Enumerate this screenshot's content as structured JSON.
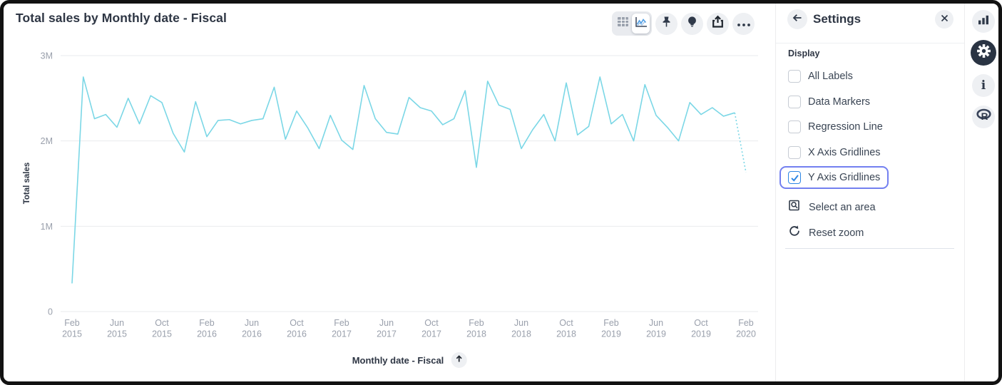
{
  "card": {
    "title": "Total sales by Monthly date - Fiscal"
  },
  "toolbar": {
    "viz_toggle": {
      "segments": [
        "table-icon",
        "line-chart-icon"
      ],
      "active": "line-chart"
    },
    "buttons": [
      "pin-icon",
      "lightbulb-icon",
      "share-icon",
      "ellipsis-icon"
    ]
  },
  "chart_data": {
    "type": "line",
    "title": "Total sales by Monthly date - Fiscal",
    "xlabel": "Monthly date - Fiscal",
    "ylabel": "Total sales",
    "ylim": [
      0,
      3000000
    ],
    "y_ticks": [
      {
        "label": "3M",
        "value": 3000000
      },
      {
        "label": "2M",
        "value": 2000000
      },
      {
        "label": "1M",
        "value": 1000000
      },
      {
        "label": "0",
        "value": 0
      }
    ],
    "gridlines": {
      "x": false,
      "y": true
    },
    "x_tick_interval_months": 4,
    "x_tick_labels": [
      [
        "Feb",
        "2015"
      ],
      [
        "Jun",
        "2015"
      ],
      [
        "Oct",
        "2015"
      ],
      [
        "Feb",
        "2016"
      ],
      [
        "Jun",
        "2016"
      ],
      [
        "Oct",
        "2016"
      ],
      [
        "Feb",
        "2017"
      ],
      [
        "Jun",
        "2017"
      ],
      [
        "Oct",
        "2017"
      ],
      [
        "Feb",
        "2018"
      ],
      [
        "Jun",
        "2018"
      ],
      [
        "Oct",
        "2018"
      ],
      [
        "Feb",
        "2019"
      ],
      [
        "Jun",
        "2019"
      ],
      [
        "Oct",
        "2019"
      ],
      [
        "Feb",
        "2020"
      ]
    ],
    "series": [
      {
        "name": "Total sales",
        "color": "#7bd7e6",
        "start_month": "Feb 2015",
        "end_month": "Feb 2020",
        "last_segment_dashed": true,
        "values_millions": [
          0.33,
          2.75,
          2.26,
          2.31,
          2.16,
          2.5,
          2.2,
          2.53,
          2.45,
          2.09,
          1.87,
          2.46,
          2.05,
          2.24,
          2.25,
          2.2,
          2.24,
          2.26,
          2.63,
          2.02,
          2.35,
          2.15,
          1.91,
          2.3,
          2.01,
          1.9,
          2.65,
          2.26,
          2.1,
          2.08,
          2.51,
          2.39,
          2.35,
          2.19,
          2.26,
          2.59,
          1.69,
          2.7,
          2.42,
          2.37,
          1.91,
          2.13,
          2.31,
          2.0,
          2.68,
          2.07,
          2.17,
          2.75,
          2.2,
          2.31,
          2.0,
          2.66,
          2.3,
          2.16,
          2.0,
          2.45,
          2.31,
          2.39,
          2.29,
          2.33,
          1.63
        ]
      }
    ],
    "x_axis_sort_icon": "arrow-up-icon"
  },
  "settings": {
    "back_icon": "arrow-left-icon",
    "title": "Settings",
    "close_icon": "close-icon",
    "display": {
      "label": "Display",
      "options": [
        {
          "label": "All Labels",
          "checked": false,
          "focused": false
        },
        {
          "label": "Data Markers",
          "checked": false,
          "focused": false
        },
        {
          "label": "Regression Line",
          "checked": false,
          "focused": false
        },
        {
          "label": "X Axis Gridlines",
          "checked": false,
          "focused": false
        },
        {
          "label": "Y Axis Gridlines",
          "checked": true,
          "focused": true
        }
      ]
    },
    "actions": [
      {
        "label": "Select an area",
        "icon": "select-area-icon"
      },
      {
        "label": "Reset zoom",
        "icon": "reset-zoom-icon"
      }
    ]
  },
  "right_rail": {
    "icons": [
      {
        "name": "bar-chart-icon",
        "active": false
      },
      {
        "name": "gear-icon",
        "active": true
      },
      {
        "name": "info-icon",
        "active": false
      },
      {
        "name": "r-logo-icon",
        "active": false
      }
    ]
  },
  "colors": {
    "line": "#7bd7e6",
    "accent_blue": "#2d86e4",
    "focus_ring": "#7380f0",
    "text_dark": "#2e3644",
    "tick_gray": "#9aa0ac",
    "gridline": "#e9ebed"
  }
}
